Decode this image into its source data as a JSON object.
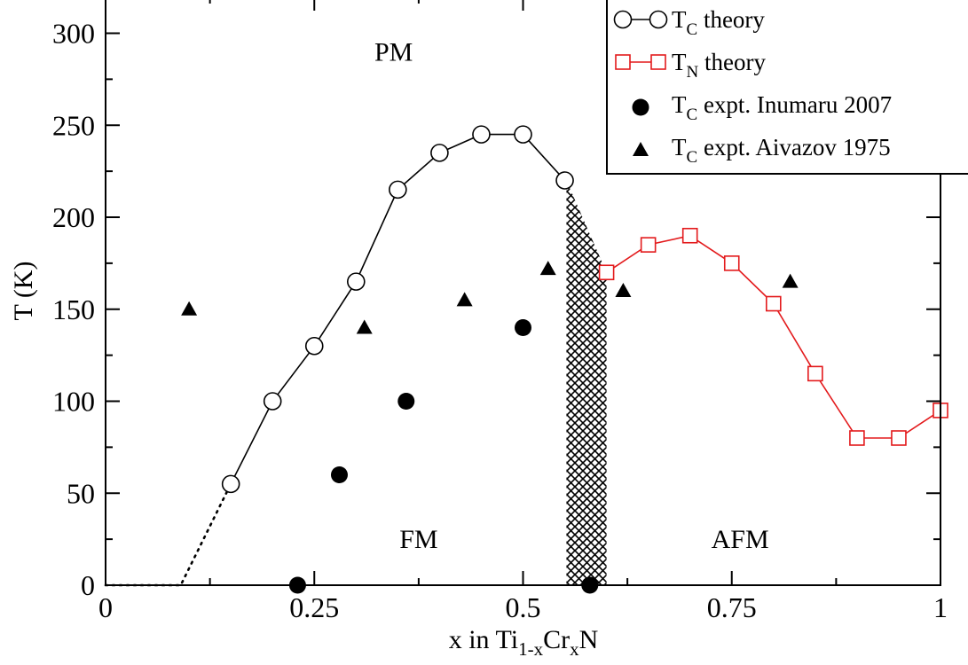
{
  "chart_data": {
    "type": "scatter",
    "title": "",
    "xlabel": {
      "prefix": "x in Ti",
      "sub1": "1-x",
      "mid": "Cr",
      "sub2": "x",
      "suffix": "N"
    },
    "ylabel": "T (K)",
    "xlim": [
      0,
      1
    ],
    "ylim": [
      0,
      320
    ],
    "x_ticks": [
      0,
      0.25,
      0.5,
      0.75,
      1
    ],
    "x_tick_labels": [
      "0",
      "0.25",
      "0.5",
      "0.75",
      "1"
    ],
    "y_ticks": [
      0,
      50,
      100,
      150,
      200,
      250,
      300
    ],
    "y_tick_labels": [
      "0",
      "50",
      "100",
      "150",
      "200",
      "250",
      "300"
    ],
    "grid": false,
    "legend_position": "top-right",
    "region_labels": [
      {
        "text": "PM",
        "x": 0.345,
        "y": 290
      },
      {
        "text": "FM",
        "x": 0.375,
        "y": 25
      },
      {
        "text": "AFM",
        "x": 0.76,
        "y": 25
      }
    ],
    "series": [
      {
        "name": {
          "base": "T",
          "sub": "C",
          "rest": " theory"
        },
        "marker": "open-circle",
        "color": "#000000",
        "x": [
          0.15,
          0.2,
          0.25,
          0.3,
          0.35,
          0.4,
          0.45,
          0.5,
          0.55
        ],
        "y": [
          55,
          100,
          130,
          165,
          215,
          235,
          245,
          245,
          220
        ]
      },
      {
        "name": {
          "base": "T",
          "sub": "N",
          "rest": " theory"
        },
        "marker": "open-square",
        "color": "#e31a1c",
        "x": [
          0.6,
          0.65,
          0.7,
          0.75,
          0.8,
          0.85,
          0.9,
          0.95,
          1.0
        ],
        "y": [
          170,
          185,
          190,
          175,
          153,
          115,
          80,
          80,
          95
        ]
      },
      {
        "name": {
          "base": "T",
          "sub": "C",
          "rest": " expt. Inumaru 2007"
        },
        "marker": "filled-circle",
        "color": "#000000",
        "x": [
          0.23,
          0.28,
          0.36,
          0.5,
          0.58
        ],
        "y": [
          0,
          60,
          100,
          140,
          0
        ]
      },
      {
        "name": {
          "base": "T",
          "sub": "C",
          "rest": " expt. Aivazov 1975"
        },
        "marker": "filled-triangle",
        "color": "#000000",
        "x": [
          0.1,
          0.31,
          0.43,
          0.53,
          0.62,
          0.82
        ],
        "y": [
          150,
          140,
          155,
          172,
          160,
          165
        ]
      }
    ],
    "dotted_extrapolation": {
      "x": [
        0,
        0.09,
        0.15
      ],
      "y": [
        0,
        0,
        55
      ]
    },
    "hatched_region": {
      "x": [
        0.552,
        0.552,
        0.6,
        0.6
      ],
      "y": [
        0,
        220,
        170,
        0
      ]
    }
  }
}
